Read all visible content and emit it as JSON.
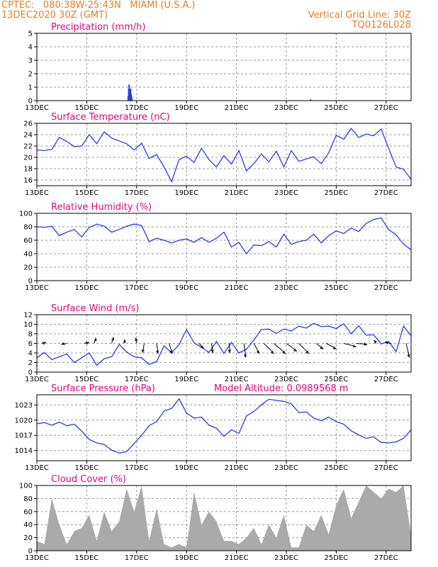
{
  "header": {
    "left_line1": "CPTEC:   080:38W-25:43N   MIAMI (U.S.A.)",
    "left_line2": "13DEC2020 30Z (GMT)",
    "right_line1": "Vertical Grid Line: 30Z",
    "right_line2": "TQ0126L028"
  },
  "colors": {
    "header": "#e67e22",
    "panel_title": "#e6007e",
    "line": "#2a3ee8",
    "cloud": "#aaaaaa",
    "grid": "#999999"
  },
  "x_ticks": [
    "13DEC",
    "15DEC",
    "17DEC",
    "19DEC",
    "21DEC",
    "23DEC",
    "25DEC",
    "27DEC"
  ],
  "x_tick_days": [
    0,
    2,
    4,
    6,
    8,
    10,
    12,
    14
  ],
  "x_range_days": [
    0,
    15
  ],
  "extra_title": "Model Altitude: 0.0989568  m",
  "chart_data": [
    {
      "type": "bar",
      "title": "Precipitation (mm/h)",
      "ylim": [
        0,
        5
      ],
      "yticks": [
        0,
        1,
        2,
        3,
        4,
        5
      ],
      "grid": true,
      "x_days": [
        3.66,
        3.68,
        3.7,
        3.72,
        3.74,
        3.76,
        3.78,
        3.8,
        3.82,
        10.97
      ],
      "values": [
        0.3,
        0.9,
        1.2,
        0.8,
        0.6,
        0.9,
        0.5,
        0.3,
        0.1,
        0.1
      ]
    },
    {
      "type": "line",
      "title": "Surface Temperature (nC)",
      "ylim": [
        15,
        26
      ],
      "yticks": [
        16,
        18,
        20,
        22,
        24,
        26
      ],
      "grid": true,
      "x_days": [
        0,
        0.3,
        0.6,
        0.9,
        1.2,
        1.5,
        1.8,
        2.1,
        2.4,
        2.7,
        3.0,
        3.3,
        3.6,
        3.9,
        4.2,
        4.5,
        4.8,
        5.1,
        5.4,
        5.7,
        6.0,
        6.3,
        6.6,
        6.9,
        7.2,
        7.5,
        7.8,
        8.1,
        8.4,
        8.7,
        9.0,
        9.3,
        9.6,
        9.9,
        10.2,
        10.5,
        10.8,
        11.1,
        11.4,
        11.7,
        12.0,
        12.3,
        12.6,
        12.9,
        13.2,
        13.5,
        13.8,
        14.1,
        14.4,
        14.7,
        15.0
      ],
      "values": [
        21.3,
        21.2,
        21.4,
        23.5,
        22.8,
        21.9,
        22.0,
        24.0,
        22.4,
        24.5,
        23.4,
        22.9,
        22.4,
        21.3,
        22.5,
        19.8,
        20.5,
        18.3,
        15.7,
        19.6,
        20.2,
        19.1,
        21.6,
        19.6,
        18.3,
        20.3,
        18.8,
        21.2,
        17.6,
        18.9,
        20.6,
        19.2,
        21.1,
        18.3,
        21.2,
        19.3,
        19.7,
        20.1,
        18.9,
        20.8,
        23.9,
        23.2,
        25.1,
        23.5,
        24.1,
        23.8,
        25.0,
        21.6,
        18.3,
        17.9,
        16.1
      ]
    },
    {
      "type": "line",
      "title": "Relative Humidity (%)",
      "ylim": [
        0,
        100
      ],
      "yticks": [
        0,
        20,
        40,
        60,
        80,
        100
      ],
      "grid": true,
      "x_days": [
        0,
        0.3,
        0.6,
        0.9,
        1.2,
        1.5,
        1.8,
        2.1,
        2.4,
        2.7,
        3.0,
        3.3,
        3.6,
        3.9,
        4.2,
        4.5,
        4.8,
        5.1,
        5.4,
        5.7,
        6.0,
        6.3,
        6.6,
        6.9,
        7.2,
        7.5,
        7.8,
        8.1,
        8.4,
        8.7,
        9.0,
        9.3,
        9.6,
        9.9,
        10.2,
        10.5,
        10.8,
        11.1,
        11.4,
        11.7,
        12.0,
        12.3,
        12.6,
        12.9,
        13.2,
        13.5,
        13.8,
        14.1,
        14.4,
        14.7,
        15.0
      ],
      "values": [
        80,
        79,
        81,
        67,
        72,
        76,
        65,
        79,
        84,
        81,
        72,
        76,
        81,
        84,
        82,
        58,
        63,
        60,
        56,
        60,
        62,
        57,
        64,
        57,
        63,
        72,
        50,
        57,
        40,
        53,
        52,
        58,
        50,
        69,
        54,
        58,
        60,
        69,
        56,
        67,
        74,
        70,
        78,
        73,
        85,
        91,
        93,
        76,
        68,
        54,
        46
      ]
    },
    {
      "type": "line",
      "title": "Surface Wind (m/s)",
      "ylim": [
        0,
        12
      ],
      "yticks": [
        0,
        2,
        4,
        6,
        8,
        10,
        12
      ],
      "grid": true,
      "x_days": [
        0,
        0.3,
        0.6,
        0.9,
        1.2,
        1.5,
        1.8,
        2.1,
        2.4,
        2.7,
        3.0,
        3.3,
        3.6,
        3.9,
        4.2,
        4.5,
        4.8,
        5.1,
        5.4,
        5.7,
        6.0,
        6.3,
        6.6,
        6.9,
        7.2,
        7.5,
        7.8,
        8.1,
        8.4,
        8.7,
        9.0,
        9.3,
        9.6,
        9.9,
        10.2,
        10.5,
        10.8,
        11.1,
        11.4,
        11.7,
        12.0,
        12.3,
        12.6,
        12.9,
        13.2,
        13.5,
        13.8,
        14.1,
        14.4,
        14.7,
        15.0
      ],
      "values": [
        3.0,
        4.1,
        2.6,
        3.2,
        3.8,
        2.0,
        3.0,
        4.0,
        1.4,
        2.8,
        3.2,
        5.8,
        4.2,
        3.2,
        3.0,
        1.6,
        2.2,
        5.5,
        4.0,
        5.7,
        8.9,
        6.1,
        5.2,
        4.1,
        6.4,
        3.9,
        6.2,
        4.0,
        4.8,
        6.7,
        8.9,
        9.0,
        8.1,
        9.0,
        8.6,
        9.6,
        9.2,
        10.2,
        9.5,
        9.6,
        9.1,
        10.1,
        8.0,
        9.7,
        7.7,
        7.8,
        5.9,
        6.4,
        4.3,
        9.6,
        7.6
      ],
      "arrows": [
        {
          "day": 0.2,
          "u": 1.0,
          "v": 0.3
        },
        {
          "day": 1.2,
          "u": -1.4,
          "v": -0.3
        },
        {
          "day": 1.9,
          "u": 1.2,
          "v": 0.3
        },
        {
          "day": 2.3,
          "u": 0.4,
          "v": 1.4
        },
        {
          "day": 3.0,
          "u": 0.4,
          "v": 1.6
        },
        {
          "day": 3.5,
          "u": 0.1,
          "v": 1.0
        },
        {
          "day": 4.0,
          "u": -0.3,
          "v": 1.4
        },
        {
          "day": 4.3,
          "u": -0.3,
          "v": -2.4
        },
        {
          "day": 4.8,
          "u": 0.4,
          "v": -2.6
        },
        {
          "day": 5.3,
          "u": 0.8,
          "v": -2.6
        },
        {
          "day": 6.5,
          "u": 1.2,
          "v": -1.3
        },
        {
          "day": 7.0,
          "u": 0.4,
          "v": -2.4
        },
        {
          "day": 7.7,
          "u": 0.3,
          "v": -2.4
        },
        {
          "day": 8.3,
          "u": 0.5,
          "v": -3.6
        },
        {
          "day": 8.7,
          "u": 1.4,
          "v": -2.6
        },
        {
          "day": 9.1,
          "u": 2.6,
          "v": -2.6
        },
        {
          "day": 9.5,
          "u": 3.0,
          "v": -2.6
        },
        {
          "day": 10.0,
          "u": 2.7,
          "v": -2.0
        },
        {
          "day": 10.5,
          "u": 2.6,
          "v": -2.6
        },
        {
          "day": 11.2,
          "u": 1.8,
          "v": -1.4
        },
        {
          "day": 11.6,
          "u": 2.6,
          "v": -1.4
        },
        {
          "day": 12.3,
          "u": 3.2,
          "v": -0.8
        },
        {
          "day": 12.8,
          "u": 2.8,
          "v": -0.2
        },
        {
          "day": 13.6,
          "u": -0.6,
          "v": 0.8
        },
        {
          "day": 14.2,
          "u": -1.6,
          "v": 0.2
        },
        {
          "day": 14.8,
          "u": 0.9,
          "v": -3.6
        }
      ]
    },
    {
      "type": "line",
      "title": "Surface Pressure (hPa)",
      "ylim": [
        1012,
        1025
      ],
      "yticks": [
        1014,
        1017,
        1020,
        1023
      ],
      "grid": true,
      "x_days": [
        0,
        0.3,
        0.6,
        0.9,
        1.2,
        1.5,
        1.8,
        2.1,
        2.4,
        2.7,
        3.0,
        3.3,
        3.6,
        3.9,
        4.2,
        4.5,
        4.8,
        5.1,
        5.4,
        5.7,
        6.0,
        6.3,
        6.6,
        6.9,
        7.2,
        7.5,
        7.8,
        8.1,
        8.4,
        8.7,
        9.0,
        9.3,
        9.6,
        9.9,
        10.2,
        10.5,
        10.8,
        11.1,
        11.4,
        11.7,
        12.0,
        12.3,
        12.6,
        12.9,
        13.2,
        13.5,
        13.8,
        14.1,
        14.4,
        14.7,
        15.0
      ],
      "values": [
        1019.3,
        1019.5,
        1019.0,
        1019.6,
        1018.9,
        1019.2,
        1017.8,
        1016.2,
        1015.5,
        1015.2,
        1014.1,
        1013.5,
        1013.8,
        1015.4,
        1017.0,
        1018.9,
        1019.7,
        1021.8,
        1022.3,
        1024.2,
        1021.4,
        1020.4,
        1020.6,
        1019.0,
        1018.4,
        1016.8,
        1018.1,
        1017.4,
        1020.8,
        1021.7,
        1023.0,
        1024.1,
        1023.9,
        1023.7,
        1023.2,
        1021.5,
        1021.6,
        1020.4,
        1019.9,
        1020.6,
        1019.7,
        1019.2,
        1017.9,
        1017.1,
        1016.4,
        1016.7,
        1015.6,
        1015.5,
        1015.7,
        1016.4,
        1018.1
      ]
    },
    {
      "type": "area",
      "title": "Cloud Cover (%)",
      "ylim": [
        0,
        100
      ],
      "yticks": [
        0,
        20,
        40,
        60,
        80,
        100
      ],
      "grid": true,
      "x_days": [
        0,
        0.3,
        0.6,
        0.9,
        1.2,
        1.5,
        1.8,
        2.1,
        2.4,
        2.7,
        3.0,
        3.3,
        3.6,
        3.9,
        4.2,
        4.5,
        4.8,
        5.1,
        5.4,
        5.7,
        6.0,
        6.3,
        6.6,
        6.9,
        7.2,
        7.5,
        7.8,
        8.1,
        8.4,
        8.7,
        9.0,
        9.3,
        9.6,
        9.9,
        10.2,
        10.5,
        10.8,
        11.1,
        11.4,
        11.7,
        12.0,
        12.3,
        12.6,
        12.9,
        13.2,
        13.5,
        13.8,
        14.1,
        14.4,
        14.7,
        15.0
      ],
      "values": [
        15,
        10,
        80,
        40,
        10,
        30,
        35,
        55,
        15,
        60,
        30,
        45,
        95,
        60,
        100,
        15,
        65,
        10,
        5,
        10,
        5,
        90,
        40,
        60,
        45,
        15,
        15,
        10,
        20,
        35,
        10,
        40,
        20,
        55,
        5,
        5,
        40,
        30,
        55,
        25,
        70,
        95,
        50,
        75,
        100,
        90,
        80,
        95,
        90,
        100,
        25
      ]
    }
  ]
}
